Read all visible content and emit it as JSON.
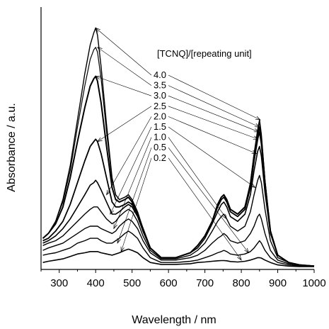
{
  "chart_data": {
    "type": "line",
    "xlabel": "Wavelength / nm",
    "ylabel": "Absorbance / a.u.",
    "xlim": [
      250,
      1000
    ],
    "ylim": [
      0,
      1.0
    ],
    "x_ticks": [
      300,
      400,
      500,
      600,
      700,
      800,
      900,
      1000
    ],
    "y_ticks_shown": false,
    "grid": false,
    "legend_title": "[TCNQ]/[repeating unit]",
    "legend_placement": "top-right",
    "x": [
      255,
      270,
      290,
      310,
      330,
      350,
      370,
      385,
      395,
      400,
      405,
      415,
      430,
      445,
      455,
      465,
      480,
      490,
      500,
      515,
      530,
      550,
      580,
      620,
      660,
      680,
      700,
      720,
      735,
      745,
      752,
      760,
      770,
      790,
      810,
      825,
      835,
      845,
      850,
      855,
      865,
      880,
      900,
      930,
      960,
      1000
    ],
    "series": [
      {
        "name": "0.2",
        "values": [
          0.02,
          0.025,
          0.03,
          0.035,
          0.045,
          0.055,
          0.06,
          0.065,
          0.065,
          0.065,
          0.065,
          0.06,
          0.055,
          0.05,
          0.055,
          0.06,
          0.07,
          0.075,
          0.07,
          0.06,
          0.04,
          0.02,
          0.012,
          0.012,
          0.015,
          0.02,
          0.022,
          0.025,
          0.027,
          0.028,
          0.028,
          0.027,
          0.024,
          0.022,
          0.025,
          0.03,
          0.035,
          0.04,
          0.04,
          0.038,
          0.03,
          0.02,
          0.01,
          0.005,
          0.003,
          0.003
        ]
      },
      {
        "name": "0.5",
        "values": [
          0.05,
          0.055,
          0.06,
          0.07,
          0.08,
          0.1,
          0.11,
          0.12,
          0.12,
          0.12,
          0.12,
          0.11,
          0.1,
          0.1,
          0.11,
          0.12,
          0.14,
          0.15,
          0.14,
          0.12,
          0.08,
          0.04,
          0.02,
          0.02,
          0.025,
          0.03,
          0.04,
          0.05,
          0.06,
          0.065,
          0.07,
          0.065,
          0.055,
          0.05,
          0.055,
          0.065,
          0.08,
          0.1,
          0.11,
          0.1,
          0.07,
          0.04,
          0.02,
          0.01,
          0.005,
          0.005
        ]
      },
      {
        "name": "1.0",
        "values": [
          0.07,
          0.08,
          0.09,
          0.1,
          0.12,
          0.14,
          0.16,
          0.17,
          0.17,
          0.17,
          0.17,
          0.16,
          0.15,
          0.14,
          0.15,
          0.17,
          0.19,
          0.2,
          0.19,
          0.16,
          0.11,
          0.06,
          0.03,
          0.03,
          0.04,
          0.05,
          0.07,
          0.1,
          0.12,
          0.13,
          0.14,
          0.13,
          0.11,
          0.1,
          0.11,
          0.14,
          0.17,
          0.21,
          0.22,
          0.2,
          0.14,
          0.07,
          0.03,
          0.015,
          0.008,
          0.005
        ]
      },
      {
        "name": "1.5",
        "values": [
          0.09,
          0.1,
          0.11,
          0.13,
          0.16,
          0.19,
          0.22,
          0.24,
          0.25,
          0.25,
          0.25,
          0.23,
          0.2,
          0.18,
          0.19,
          0.21,
          0.23,
          0.24,
          0.23,
          0.19,
          0.13,
          0.07,
          0.035,
          0.035,
          0.05,
          0.07,
          0.1,
          0.15,
          0.19,
          0.21,
          0.22,
          0.2,
          0.17,
          0.15,
          0.17,
          0.23,
          0.3,
          0.36,
          0.38,
          0.35,
          0.24,
          0.11,
          0.04,
          0.02,
          0.01,
          0.005
        ]
      },
      {
        "name": "2.0",
        "values": [
          0.1,
          0.11,
          0.13,
          0.16,
          0.2,
          0.25,
          0.3,
          0.34,
          0.35,
          0.36,
          0.35,
          0.32,
          0.27,
          0.22,
          0.22,
          0.23,
          0.25,
          0.26,
          0.25,
          0.21,
          0.15,
          0.08,
          0.04,
          0.04,
          0.06,
          0.08,
          0.12,
          0.18,
          0.23,
          0.26,
          0.27,
          0.25,
          0.21,
          0.19,
          0.22,
          0.3,
          0.4,
          0.48,
          0.5,
          0.46,
          0.31,
          0.14,
          0.05,
          0.02,
          0.01,
          0.005
        ]
      },
      {
        "name": "2.5",
        "values": [
          0.11,
          0.12,
          0.15,
          0.19,
          0.26,
          0.35,
          0.44,
          0.5,
          0.52,
          0.53,
          0.52,
          0.47,
          0.37,
          0.27,
          0.25,
          0.25,
          0.26,
          0.27,
          0.26,
          0.22,
          0.15,
          0.08,
          0.04,
          0.04,
          0.06,
          0.09,
          0.13,
          0.19,
          0.25,
          0.28,
          0.29,
          0.27,
          0.23,
          0.21,
          0.24,
          0.33,
          0.44,
          0.53,
          0.56,
          0.51,
          0.34,
          0.15,
          0.05,
          0.02,
          0.01,
          0.005
        ]
      },
      {
        "name": "3.0",
        "values": [
          0.12,
          0.14,
          0.18,
          0.25,
          0.37,
          0.52,
          0.66,
          0.75,
          0.78,
          0.79,
          0.77,
          0.68,
          0.5,
          0.33,
          0.28,
          0.27,
          0.28,
          0.29,
          0.27,
          0.22,
          0.16,
          0.08,
          0.04,
          0.04,
          0.06,
          0.09,
          0.13,
          0.19,
          0.26,
          0.29,
          0.3,
          0.28,
          0.24,
          0.22,
          0.25,
          0.34,
          0.46,
          0.55,
          0.58,
          0.53,
          0.35,
          0.15,
          0.05,
          0.02,
          0.01,
          0.005
        ]
      },
      {
        "name": "3.5",
        "values": [
          0.12,
          0.14,
          0.19,
          0.27,
          0.4,
          0.58,
          0.75,
          0.86,
          0.9,
          0.91,
          0.89,
          0.78,
          0.56,
          0.36,
          0.3,
          0.28,
          0.29,
          0.3,
          0.28,
          0.23,
          0.16,
          0.08,
          0.04,
          0.04,
          0.06,
          0.09,
          0.13,
          0.19,
          0.26,
          0.29,
          0.3,
          0.28,
          0.24,
          0.22,
          0.25,
          0.34,
          0.46,
          0.56,
          0.6,
          0.54,
          0.36,
          0.15,
          0.05,
          0.02,
          0.01,
          0.005
        ]
      },
      {
        "name": "4.0",
        "values": [
          0.12,
          0.14,
          0.19,
          0.28,
          0.42,
          0.61,
          0.8,
          0.92,
          0.97,
          0.99,
          0.96,
          0.83,
          0.59,
          0.37,
          0.3,
          0.28,
          0.29,
          0.3,
          0.28,
          0.23,
          0.16,
          0.08,
          0.04,
          0.04,
          0.06,
          0.09,
          0.13,
          0.19,
          0.26,
          0.29,
          0.3,
          0.28,
          0.24,
          0.22,
          0.25,
          0.35,
          0.47,
          0.57,
          0.61,
          0.55,
          0.36,
          0.15,
          0.05,
          0.02,
          0.01,
          0.005
        ]
      }
    ]
  }
}
